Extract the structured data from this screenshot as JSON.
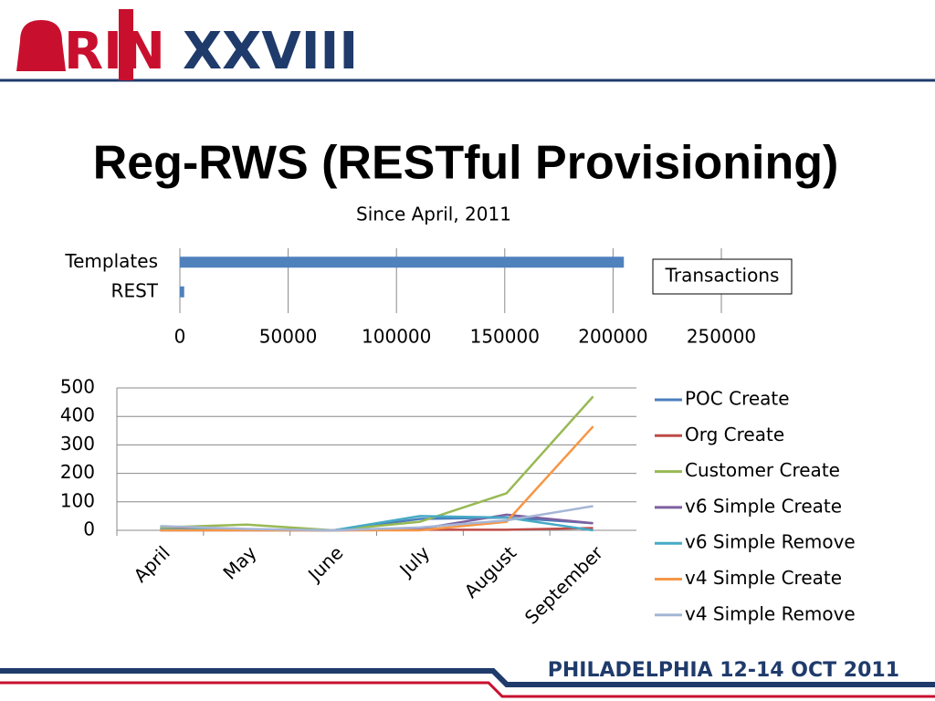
{
  "logo": {
    "left": "RIN",
    "right": "XXVIII"
  },
  "title": "Reg-RWS (RESTful Provisioning)",
  "footer": "PHILADELPHIA 12-14 OCT 2011",
  "chart_data": [
    {
      "type": "hbar",
      "title": "Since April, 2011",
      "categories": [
        "Templates",
        "REST"
      ],
      "series": [
        {
          "name": "Transactions",
          "color": "#4f81bd",
          "values": [
            205000,
            2000
          ]
        }
      ],
      "xlim": [
        0,
        250000
      ],
      "xticks": [
        0,
        50000,
        100000,
        150000,
        200000,
        250000
      ],
      "grid": true,
      "legend": "right"
    },
    {
      "type": "line",
      "categories": [
        "April",
        "May",
        "June",
        "July",
        "August",
        "September"
      ],
      "series": [
        {
          "name": "POC Create",
          "color": "#4a7ebb",
          "values": [
            5,
            3,
            0,
            40,
            45,
            25
          ]
        },
        {
          "name": "Org Create",
          "color": "#be4b48",
          "values": [
            8,
            3,
            0,
            2,
            2,
            8
          ]
        },
        {
          "name": "Customer Create",
          "color": "#98b954",
          "values": [
            10,
            20,
            0,
            30,
            130,
            470
          ]
        },
        {
          "name": "v6 Simple Create",
          "color": "#7d60a0",
          "values": [
            0,
            0,
            0,
            5,
            55,
            25
          ]
        },
        {
          "name": "v6 Simple Remove",
          "color": "#46aac5",
          "values": [
            3,
            2,
            0,
            50,
            45,
            0
          ]
        },
        {
          "name": "v4 Simple Create",
          "color": "#f79646",
          "values": [
            0,
            0,
            0,
            0,
            30,
            365
          ]
        },
        {
          "name": "v4 Simple Remove",
          "color": "#a5b6d6",
          "values": [
            15,
            5,
            0,
            10,
            35,
            85
          ]
        }
      ],
      "ylim": [
        0,
        500
      ],
      "yticks": [
        0,
        100,
        200,
        300,
        400,
        500
      ],
      "grid": true,
      "legend": "right"
    }
  ]
}
